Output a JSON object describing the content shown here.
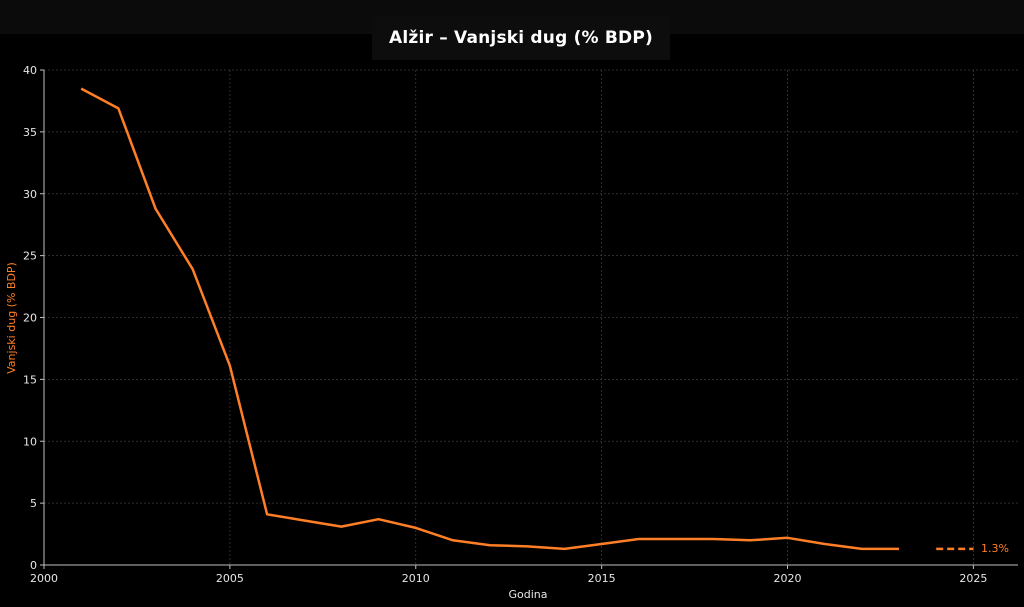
{
  "colors": {
    "background": "#000000",
    "line": "#ff7f27",
    "grid": "#3a3a3a",
    "axis": "#bfbfbf",
    "text": "#e6e6e6",
    "ylabel": "#ff7f27"
  },
  "chart_data": {
    "type": "line",
    "title": "Alžir – Vanjski dug (% BDP)",
    "xlabel": "Godina",
    "ylabel": "Vanjski dug (% BDP)",
    "xlim": [
      2000,
      2026.2
    ],
    "ylim": [
      0,
      40
    ],
    "grid": true,
    "xticks": [
      2000,
      2005,
      2010,
      2015,
      2020,
      2025
    ],
    "yticks": [
      0,
      5,
      10,
      15,
      20,
      25,
      30,
      35,
      40
    ],
    "series": [
      {
        "style": "solid",
        "x": [
          2001,
          2002,
          2003,
          2004,
          2005,
          2006,
          2007,
          2008,
          2009,
          2010,
          2011,
          2012,
          2013,
          2014,
          2015,
          2016,
          2017,
          2018,
          2019,
          2020,
          2021,
          2022,
          2023
        ],
        "y": [
          38.5,
          36.9,
          28.8,
          23.9,
          16.1,
          4.1,
          3.6,
          3.1,
          3.7,
          3.0,
          2.0,
          1.6,
          1.5,
          1.3,
          1.7,
          2.1,
          2.1,
          2.1,
          2.0,
          2.2,
          1.7,
          1.3,
          1.3
        ]
      },
      {
        "style": "dashed",
        "x": [
          2024,
          2025
        ],
        "y": [
          1.3,
          1.3
        ]
      }
    ],
    "annotations": [
      {
        "text": "1.3%",
        "x": 2025,
        "y": 1.3
      }
    ]
  }
}
